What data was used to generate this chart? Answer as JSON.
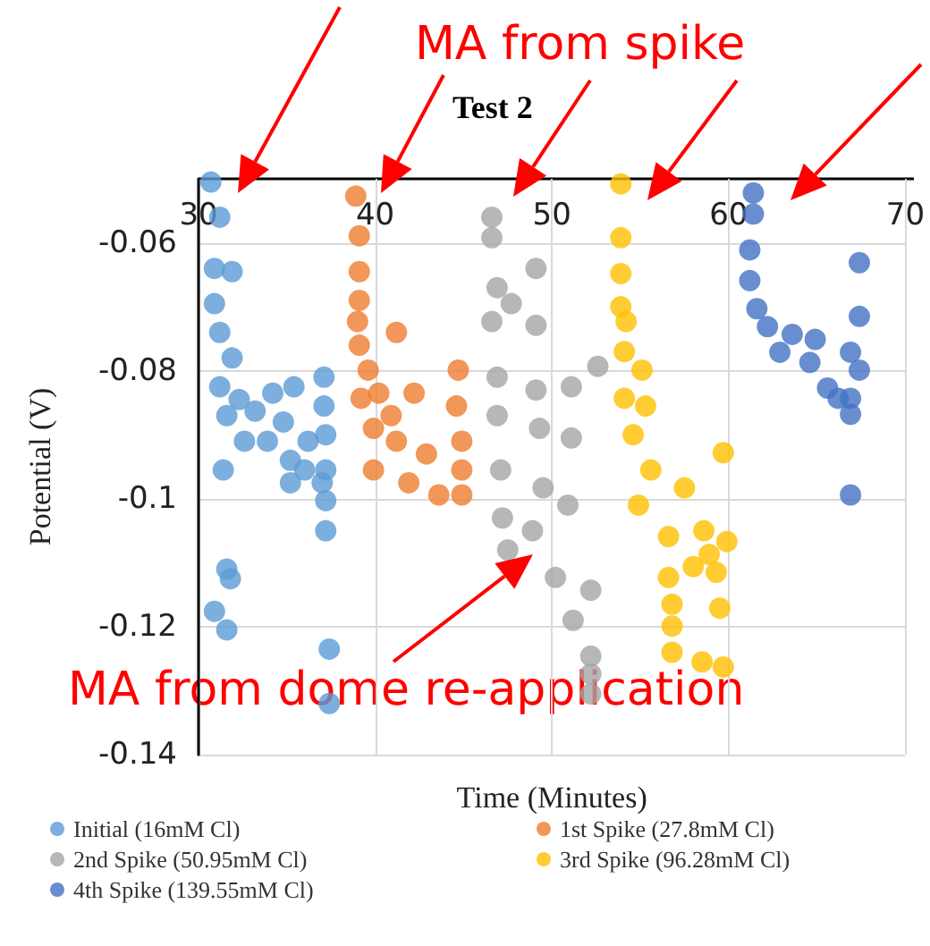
{
  "chart_data": {
    "type": "scatter",
    "title": "Test 2",
    "xlabel": "Time (Minutes)",
    "ylabel": "Potential (V)",
    "annotations": [
      "MA from spike",
      "MA from dome re-application"
    ],
    "xlim": [
      30,
      70
    ],
    "xticks": [
      30,
      40,
      50,
      60,
      70
    ],
    "ylim": [
      -0.14,
      -0.05
    ],
    "yticks": [
      -0.14,
      -0.12,
      -0.1,
      -0.08,
      -0.06
    ],
    "grid": true,
    "legend": "bottom",
    "marker": "circle",
    "series": [
      {
        "name": "Initial (16mM Cl)",
        "color": "#5b9bd5",
        "x": [
          30.7,
          31.2,
          30.9,
          31.9,
          30.9,
          31.2,
          31.9,
          31.2,
          31.6,
          32.6,
          34.2,
          35.4,
          33.9,
          35.2,
          36.2,
          31.4,
          35.2,
          37.1,
          37.1,
          37.2,
          37.2,
          37.2,
          37.2,
          31.6,
          31.8,
          30.9,
          31.6,
          37.4,
          37.4,
          33.2,
          32.3,
          36.0,
          37.0,
          34.8
        ],
        "values": [
          -0.0505,
          -0.056,
          -0.064,
          -0.0645,
          -0.0695,
          -0.074,
          -0.078,
          -0.0825,
          -0.087,
          -0.091,
          -0.0835,
          -0.0825,
          -0.091,
          -0.094,
          -0.091,
          -0.0955,
          -0.0975,
          -0.081,
          -0.0855,
          -0.09,
          -0.0955,
          -0.1003,
          -0.105,
          -0.111,
          -0.1125,
          -0.1176,
          -0.1205,
          -0.1235,
          -0.132,
          -0.0863,
          -0.0845,
          -0.0955,
          -0.0975,
          -0.088
        ]
      },
      {
        "name": "1st Spike (27.8mM Cl)",
        "color": "#ed7d31",
        "x": [
          38.9,
          39.1,
          39.1,
          39.1,
          39.0,
          39.1,
          41.2,
          39.6,
          39.2,
          40.2,
          42.2,
          39.9,
          41.2,
          39.9,
          41.9,
          43.6,
          44.9,
          44.7,
          44.6,
          44.9,
          44.9,
          42.9,
          40.9
        ],
        "values": [
          -0.0527,
          -0.0589,
          -0.0645,
          -0.069,
          -0.0723,
          -0.076,
          -0.074,
          -0.0799,
          -0.0843,
          -0.0835,
          -0.0835,
          -0.089,
          -0.091,
          -0.0955,
          -0.0975,
          -0.0994,
          -0.0994,
          -0.0799,
          -0.0855,
          -0.091,
          -0.0955,
          -0.093,
          -0.087
        ]
      },
      {
        "name": "2nd Spike (50.95mM Cl)",
        "color": "#a5a5a5",
        "x": [
          46.6,
          46.6,
          46.9,
          47.7,
          46.6,
          49.1,
          46.9,
          49.1,
          46.9,
          47.1,
          47.2,
          47.5,
          49.3,
          49.5,
          49.1,
          52.6,
          51.1,
          51.1,
          50.9,
          48.9,
          50.2,
          52.2,
          51.2,
          52.2,
          52.2,
          52.2
        ],
        "values": [
          -0.056,
          -0.0592,
          -0.067,
          -0.0695,
          -0.0723,
          -0.0729,
          -0.081,
          -0.083,
          -0.087,
          -0.0955,
          -0.103,
          -0.108,
          -0.089,
          -0.0983,
          -0.064,
          -0.0793,
          -0.0825,
          -0.0905,
          -0.101,
          -0.105,
          -0.1123,
          -0.1143,
          -0.119,
          -0.1246,
          -0.1274,
          -0.1305
        ]
      },
      {
        "name": "3rd Spike (96.28mM Cl)",
        "color": "#ffc000",
        "x": [
          53.9,
          53.9,
          53.9,
          53.9,
          54.2,
          54.1,
          55.1,
          54.1,
          55.3,
          54.6,
          55.6,
          57.5,
          54.9,
          59.7,
          56.6,
          58.6,
          59.9,
          58.0,
          56.6,
          59.3,
          59.5,
          56.8,
          56.8,
          56.8,
          58.5,
          59.7,
          58.9
        ],
        "values": [
          -0.0508,
          -0.0592,
          -0.0648,
          -0.07,
          -0.0723,
          -0.077,
          -0.0799,
          -0.0843,
          -0.0855,
          -0.09,
          -0.0955,
          -0.0983,
          -0.101,
          -0.0928,
          -0.1059,
          -0.105,
          -0.1067,
          -0.1106,
          -0.1123,
          -0.1115,
          -0.1171,
          -0.1165,
          -0.1199,
          -0.124,
          -0.1255,
          -0.1263,
          -0.1087
        ]
      },
      {
        "name": "4th Spike (139.55mM Cl)",
        "color": "#4472c4",
        "x": [
          61.4,
          61.4,
          61.2,
          61.2,
          61.6,
          62.2,
          63.6,
          64.9,
          64.6,
          65.6,
          66.9,
          67.4,
          66.9,
          66.9,
          66.2,
          67.4,
          67.4,
          66.9,
          62.9
        ],
        "values": [
          -0.0522,
          -0.0555,
          -0.0611,
          -0.0659,
          -0.0703,
          -0.0731,
          -0.0743,
          -0.0751,
          -0.0787,
          -0.0827,
          -0.0771,
          -0.0799,
          -0.0843,
          -0.0868,
          -0.0843,
          -0.0631,
          -0.0715,
          -0.0994,
          -0.0771
        ]
      }
    ]
  }
}
